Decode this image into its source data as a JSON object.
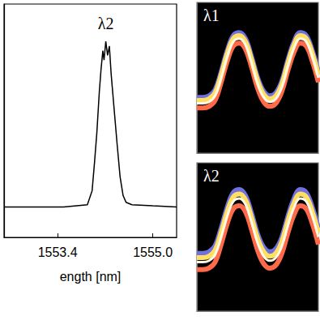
{
  "chart_data": [
    {
      "type": "line",
      "xlabel": "ength [nm]",
      "annotation": "λ2",
      "color": "#000000",
      "x": [
        1552.5,
        1553.0,
        1553.5,
        1553.9,
        1553.98,
        1554.02,
        1554.06,
        1554.1,
        1554.13,
        1554.16,
        1554.18,
        1554.21,
        1554.24,
        1554.27,
        1554.3,
        1554.35,
        1554.4,
        1554.45,
        1554.5,
        1554.55,
        1554.65,
        1555.0,
        1555.4
      ],
      "values": [
        0.13,
        0.13,
        0.13,
        0.14,
        0.2,
        0.32,
        0.45,
        0.62,
        0.72,
        0.8,
        0.76,
        0.84,
        0.78,
        0.82,
        0.7,
        0.55,
        0.4,
        0.26,
        0.18,
        0.15,
        0.14,
        0.135,
        0.13
      ],
      "xlim": [
        1552.5,
        1555.4
      ],
      "xticks": [
        1553.4,
        {
          "value": 1555.0,
          "label": "1555.0"
        }
      ],
      "ylim": [
        0,
        1
      ],
      "tick_labels": "x"
    },
    {
      "type": "line",
      "annotation": "λ1",
      "x": [
        0,
        0.5,
        1,
        1.5,
        2,
        2.5,
        3,
        3.5,
        4,
        4.5,
        5,
        5.5,
        6,
        6.5,
        7,
        7.5,
        8,
        8.5,
        9,
        9.5,
        10
      ],
      "xlim": [
        0,
        10
      ],
      "ylim": [
        0,
        1
      ],
      "tick_labels": false,
      "series": [
        {
          "color": "#7070e0",
          "values": [
            0.37,
            0.37,
            0.38,
            0.42,
            0.54,
            0.68,
            0.78,
            0.8,
            0.76,
            0.64,
            0.5,
            0.41,
            0.38,
            0.4,
            0.48,
            0.62,
            0.74,
            0.8,
            0.78,
            0.68,
            0.54
          ]
        },
        {
          "color": "#ff6a4a",
          "values": [
            0.3,
            0.3,
            0.31,
            0.35,
            0.47,
            0.61,
            0.71,
            0.73,
            0.69,
            0.57,
            0.43,
            0.34,
            0.31,
            0.33,
            0.41,
            0.55,
            0.67,
            0.73,
            0.71,
            0.61,
            0.47
          ]
        },
        {
          "color": "#ffe060",
          "values": [
            0.35,
            0.35,
            0.36,
            0.4,
            0.52,
            0.66,
            0.76,
            0.78,
            0.74,
            0.62,
            0.48,
            0.39,
            0.36,
            0.38,
            0.46,
            0.6,
            0.72,
            0.78,
            0.76,
            0.66,
            0.52
          ]
        },
        {
          "color": "#fffbe8",
          "values": [
            0.33,
            0.33,
            0.34,
            0.38,
            0.5,
            0.64,
            0.74,
            0.76,
            0.72,
            0.6,
            0.46,
            0.37,
            0.34,
            0.36,
            0.44,
            0.58,
            0.7,
            0.76,
            0.74,
            0.64,
            0.5
          ]
        }
      ]
    },
    {
      "type": "line",
      "annotation": "λ2",
      "x": [
        0,
        0.5,
        1,
        1.5,
        2,
        2.5,
        3,
        3.5,
        4,
        4.5,
        5,
        5.5,
        6,
        6.5,
        7,
        7.5,
        8,
        8.5,
        9,
        9.5,
        10
      ],
      "xlim": [
        0,
        10
      ],
      "ylim": [
        0,
        1
      ],
      "tick_labels": false,
      "series": [
        {
          "color": "#7070e0",
          "values": [
            0.39,
            0.39,
            0.4,
            0.44,
            0.56,
            0.7,
            0.8,
            0.82,
            0.78,
            0.66,
            0.52,
            0.43,
            0.4,
            0.42,
            0.5,
            0.64,
            0.76,
            0.82,
            0.8,
            0.7,
            0.56
          ]
        },
        {
          "color": "#ff6a4a",
          "values": [
            0.28,
            0.28,
            0.29,
            0.33,
            0.45,
            0.59,
            0.69,
            0.71,
            0.67,
            0.55,
            0.41,
            0.32,
            0.29,
            0.31,
            0.39,
            0.53,
            0.65,
            0.71,
            0.69,
            0.59,
            0.45
          ]
        },
        {
          "color": "#ffe060",
          "values": [
            0.36,
            0.36,
            0.37,
            0.41,
            0.53,
            0.67,
            0.77,
            0.79,
            0.75,
            0.63,
            0.49,
            0.4,
            0.37,
            0.39,
            0.47,
            0.61,
            0.73,
            0.79,
            0.77,
            0.67,
            0.53
          ]
        },
        {
          "color": "#fffbe8",
          "values": [
            0.33,
            0.33,
            0.34,
            0.38,
            0.5,
            0.64,
            0.74,
            0.76,
            0.72,
            0.6,
            0.46,
            0.37,
            0.34,
            0.36,
            0.44,
            0.58,
            0.7,
            0.76,
            0.74,
            0.64,
            0.5
          ]
        }
      ]
    }
  ]
}
